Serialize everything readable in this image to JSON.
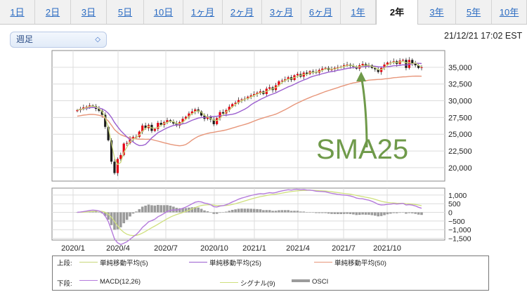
{
  "tabs": [
    {
      "label": "1日",
      "active": false
    },
    {
      "label": "2日",
      "active": false
    },
    {
      "label": "3日",
      "active": false
    },
    {
      "label": "5日",
      "active": false
    },
    {
      "label": "10日",
      "active": false
    },
    {
      "label": "1ヶ月",
      "active": false
    },
    {
      "label": "2ヶ月",
      "active": false
    },
    {
      "label": "3ヶ月",
      "active": false
    },
    {
      "label": "6ヶ月",
      "active": false
    },
    {
      "label": "1年",
      "active": false
    },
    {
      "label": "2年",
      "active": true
    },
    {
      "label": "3年",
      "active": false
    },
    {
      "label": "5年",
      "active": false
    },
    {
      "label": "10年",
      "active": false
    }
  ],
  "period_select": {
    "value": "週足"
  },
  "timestamp": "21/12/21 17:02 EST",
  "annotation": {
    "text": "SMA25",
    "color": "#6f9a4a"
  },
  "colors": {
    "up": "#e60012",
    "down": "#1a1a1a",
    "sma5": "#c8d67a",
    "sma25": "#9b5fcf",
    "sma50": "#e7967a",
    "macd": "#b57bdc",
    "signal": "#cfe07d",
    "osci": "#9b9b9b"
  },
  "chart_data": [
    {
      "type": "candlestick",
      "title": "",
      "x_dates": [
        "2020/1",
        "2020/4",
        "2020/7",
        "2020/10",
        "2021/1",
        "2021/4",
        "2021/7",
        "2021/10"
      ],
      "ylim": [
        18000,
        37500
      ],
      "yticks": [
        "35,000",
        "32,500",
        "30,000",
        "27,500",
        "25,000",
        "22,500",
        "20,000"
      ],
      "yticks_values": [
        35000,
        32500,
        30000,
        27500,
        25000,
        22500,
        20000
      ],
      "close_series": [
        28600,
        28800,
        29000,
        29100,
        29300,
        29200,
        28800,
        28500,
        27900,
        26100,
        24100,
        20900,
        19200,
        21300,
        21900,
        23600,
        23700,
        24300,
        24600,
        24600,
        25400,
        26300,
        25900,
        26400,
        25500,
        25800,
        26700,
        26400,
        26800,
        27100,
        26900,
        26600,
        26300,
        26800,
        27300,
        27600,
        28100,
        28400,
        28700,
        28400,
        27800,
        27300,
        27600,
        27200,
        26500,
        27400,
        28300,
        28100,
        28600,
        29100,
        29500,
        29700,
        30100,
        30200,
        30300,
        30600,
        30800,
        31000,
        31200,
        31400,
        31000,
        31800,
        32000,
        31600,
        32300,
        32900,
        33000,
        33200,
        33500,
        33100,
        33800,
        34000,
        33600,
        34200,
        34000,
        34400,
        34300,
        34200,
        34600,
        34800,
        34900,
        34600,
        34700,
        34900,
        35000,
        35100,
        35300,
        35400,
        35200,
        35100,
        34800,
        35300,
        35500,
        35200,
        35300,
        34900,
        34700,
        34300,
        34900,
        35400,
        35700,
        35700,
        35900,
        35500,
        36000,
        36100,
        34900,
        36100,
        35600,
        35300,
        34900,
        35000
      ],
      "series": [
        {
          "name": "単純移動平均(5)"
        },
        {
          "name": "単純移動平均(25)"
        },
        {
          "name": "単純移動平均(50)"
        }
      ]
    },
    {
      "type": "line",
      "title": "",
      "ylim": [
        -1600,
        1400
      ],
      "yticks": [
        "1,000",
        "500",
        "0",
        "−500",
        "−1,000",
        "−1,500"
      ],
      "yticks_values": [
        1000,
        500,
        0,
        -500,
        -1000,
        -1500
      ],
      "series": [
        {
          "name": "MACD(12,26)"
        },
        {
          "name": "シグナル(9)"
        },
        {
          "name": "OSCI"
        }
      ]
    }
  ],
  "legend": {
    "upper_label": "上段:",
    "lower_label": "下段:",
    "upper_items": [
      "単純移動平均(5)",
      "単純移動平均(25)",
      "単純移動平均(50)"
    ],
    "lower_items": [
      "MACD(12,26)",
      "シグナル(9)",
      "OSCI"
    ]
  }
}
